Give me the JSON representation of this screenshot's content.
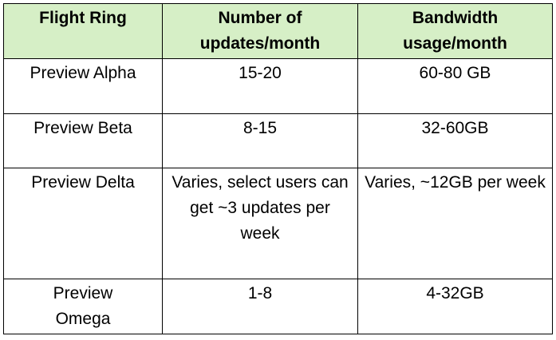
{
  "table": {
    "header": [
      "Flight Ring",
      "Number of updates/month",
      "Bandwidth usage/month"
    ],
    "rows": [
      [
        "Preview Alpha",
        "15-20",
        "60-80 GB"
      ],
      [
        "Preview Beta",
        "8-15",
        "32-60GB"
      ],
      [
        "Preview Delta",
        "Varies, select users can get ~3 updates per week",
        "Varies, ~12GB per week"
      ],
      [
        "Preview Omega",
        "1-8",
        "4-32GB"
      ]
    ]
  }
}
